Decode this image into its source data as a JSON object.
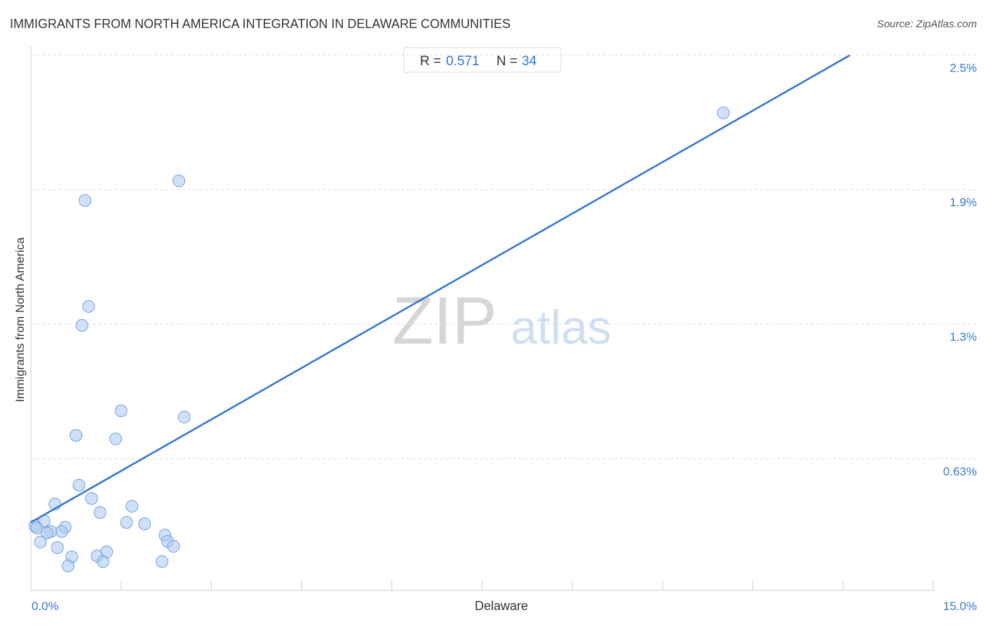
{
  "chart_data": {
    "type": "scatter",
    "title": "IMMIGRANTS FROM NORTH AMERICA INTEGRATION IN DELAWARE COMMUNITIES",
    "source": "Source: ZipAtlas.com",
    "x_label": "Delaware",
    "y_label": "Immigrants from North America",
    "watermark": [
      "ZIP",
      "atlas"
    ],
    "stats": {
      "r_label": "R =",
      "r": 0.571,
      "n_label": "N =",
      "n": 34
    },
    "color": "#a9c9f1",
    "edge_color": "#6f9fdf",
    "line_color": "#2f74d3",
    "x": [
      11.51,
      2.46,
      0.9,
      0.96,
      0.85,
      1.5,
      2.55,
      0.75,
      1.41,
      0.8,
      1.01,
      0.4,
      1.68,
      1.15,
      0.22,
      1.59,
      1.89,
      0.07,
      0.57,
      0.1,
      0.51,
      0.33,
      0.27,
      2.23,
      2.27,
      0.16,
      2.37,
      0.44,
      1.26,
      1.1,
      0.68,
      1.2,
      2.18,
      0.62
    ],
    "values": [
      2.231,
      1.915,
      1.824,
      1.332,
      1.244,
      0.847,
      0.818,
      0.733,
      0.717,
      0.502,
      0.44,
      0.414,
      0.404,
      0.375,
      0.336,
      0.329,
      0.322,
      0.313,
      0.306,
      0.303,
      0.287,
      0.287,
      0.28,
      0.27,
      0.241,
      0.238,
      0.218,
      0.212,
      0.192,
      0.173,
      0.169,
      0.147,
      0.147,
      0.127
    ],
    "trend_line": {
      "x": [
        0,
        13.61
      ],
      "y": [
        0.329,
        2.498
      ]
    },
    "xlim": [
      0,
      15
    ],
    "ylim": [
      0,
      2.54
    ],
    "xticks": [
      {
        "value": 0,
        "label": "0.0%"
      },
      {
        "value": 15,
        "label": "15.0%"
      }
    ],
    "xminor_ticks": [
      1.5,
      3,
      4.5,
      6,
      7.5,
      9,
      10.5,
      12,
      13.5
    ],
    "yticks": [
      {
        "value": 0.625,
        "label": "0.63%"
      },
      {
        "value": 1.25,
        "label": "1.3%"
      },
      {
        "value": 1.875,
        "label": "1.9%"
      },
      {
        "value": 2.5,
        "label": "2.5%"
      }
    ],
    "grid": true
  }
}
